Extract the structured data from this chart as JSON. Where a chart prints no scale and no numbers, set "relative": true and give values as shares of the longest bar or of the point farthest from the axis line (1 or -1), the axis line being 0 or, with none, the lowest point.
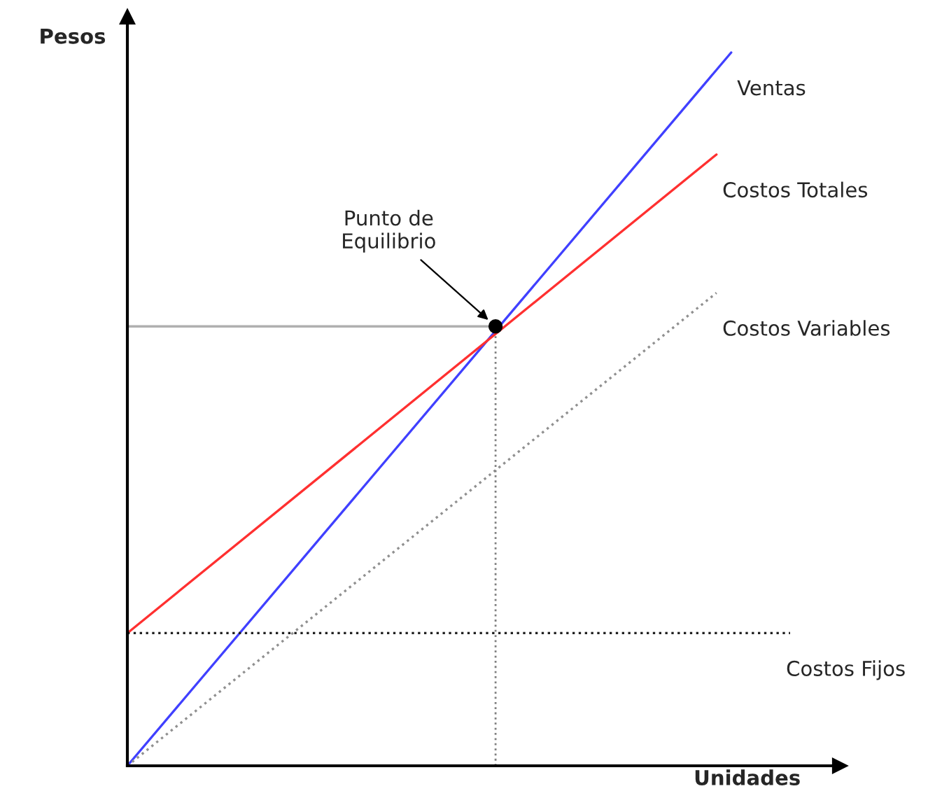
{
  "chart_data": {
    "type": "line",
    "relative": true,
    "xlabel": "Unidades",
    "ylabel": "Pesos",
    "categories": [
      null,
      null,
      null,
      null,
      null,
      null,
      null,
      null,
      null,
      null,
      null,
      null,
      null,
      null,
      null,
      null,
      null,
      null,
      null,
      null,
      null,
      null,
      null,
      null,
      null,
      null,
      null,
      null,
      null,
      null,
      null,
      null,
      null,
      null,
      null,
      null,
      null,
      null,
      null,
      null,
      null,
      null,
      null,
      null,
      null,
      null
    ],
    "series": [
      {
        "name": "Ventas",
        "color": "#4040ff",
        "values": [
          0,
          null,
          null,
          null,
          null,
          null,
          null,
          null,
          null,
          null,
          null,
          null,
          null,
          null,
          null,
          null,
          null,
          null,
          null,
          null,
          null,
          null,
          null,
          null,
          null,
          null,
          null,
          null,
          null,
          null,
          null,
          null,
          null,
          null,
          null,
          null,
          null,
          null,
          null,
          null,
          null,
          1,
          null,
          null,
          null,
          null
        ],
        "line_style": "solid"
      },
      {
        "name": "Costos Totales",
        "color": "#ff3030",
        "values": [
          0.186,
          null,
          null,
          null,
          null,
          null,
          null,
          null,
          null,
          null,
          null,
          null,
          null,
          null,
          null,
          null,
          null,
          null,
          null,
          null,
          null,
          null,
          null,
          null,
          null,
          null,
          null,
          null,
          null,
          null,
          null,
          null,
          null,
          null,
          null,
          null,
          null,
          null,
          null,
          null,
          0.857,
          null,
          null,
          null,
          null,
          null
        ],
        "line_style": "solid"
      },
      {
        "name": "Costos Variables",
        "color": "#909090",
        "values": [
          0,
          null,
          null,
          null,
          null,
          null,
          null,
          null,
          null,
          null,
          null,
          null,
          null,
          null,
          null,
          null,
          null,
          null,
          null,
          null,
          null,
          null,
          null,
          null,
          null,
          null,
          null,
          null,
          null,
          null,
          null,
          null,
          null,
          null,
          null,
          null,
          null,
          null,
          null,
          null,
          0.663,
          null,
          null,
          null,
          null,
          null
        ],
        "line_style": "dotted"
      },
      {
        "name": "Costos Fijos",
        "color": "#202020",
        "values": [
          0.186,
          null,
          null,
          null,
          null,
          null,
          null,
          null,
          null,
          null,
          null,
          null,
          null,
          null,
          null,
          null,
          null,
          null,
          null,
          null,
          null,
          null,
          null,
          null,
          null,
          null,
          null,
          null,
          null,
          null,
          null,
          null,
          null,
          null,
          null,
          null,
          null,
          null,
          null,
          null,
          null,
          null,
          null,
          null,
          null,
          0.186
        ],
        "line_style": "dotted"
      },
      {
        "color": "#b0b0b0",
        "values": [
          0.616,
          null,
          null,
          null,
          null,
          null,
          null,
          null,
          null,
          null,
          null,
          null,
          null,
          null,
          null,
          null,
          null,
          null,
          null,
          null,
          null,
          null,
          null,
          null,
          null,
          0.616,
          null,
          null,
          null,
          null,
          null,
          null,
          null,
          null,
          null,
          null,
          null,
          null,
          null,
          null,
          null,
          null,
          null,
          null,
          null,
          null
        ],
        "line_style": "solid"
      },
      {
        "color": "#000000",
        "values": [
          null,
          null,
          null,
          null,
          null,
          null,
          null,
          null,
          null,
          null,
          null,
          null,
          null,
          null,
          null,
          null,
          null,
          null,
          null,
          null,
          null,
          null,
          null,
          null,
          null,
          0.616,
          null,
          null,
          null,
          null,
          null,
          null,
          null,
          null,
          null,
          null,
          null,
          null,
          null,
          null,
          null,
          null,
          null,
          null,
          null,
          null
        ],
        "marker": "circle",
        "line_style": "dotted"
      }
    ],
    "annotations": [
      "Punto de\nEquilibrio"
    ]
  }
}
